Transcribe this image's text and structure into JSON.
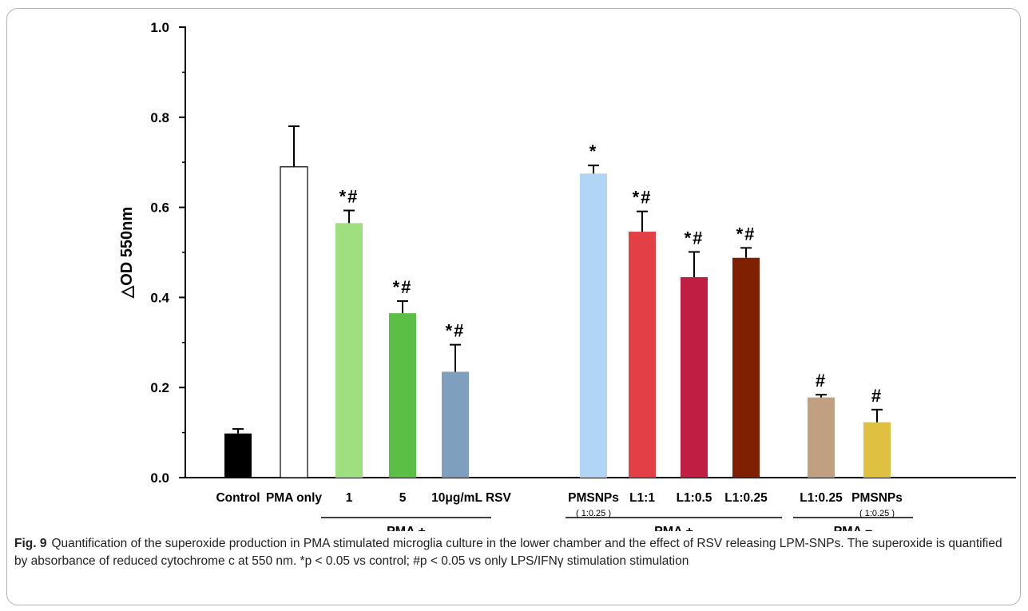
{
  "chart_data": {
    "type": "bar",
    "ylabel": "△OD 550nm",
    "ylim": [
      0,
      1.0
    ],
    "yticks": [
      "0.0",
      "0.2",
      "0.4",
      "0.6",
      "0.8",
      "1.0"
    ],
    "grid": false,
    "bars": [
      {
        "label": "Control",
        "sublabel": "",
        "value": 0.098,
        "error": 0.01,
        "annotation": "",
        "color": "#000000"
      },
      {
        "label": "PMA only",
        "sublabel": "",
        "value": 0.69,
        "error": 0.09,
        "annotation": "",
        "color": "#ffffff"
      },
      {
        "label": "1",
        "sublabel": "",
        "value": 0.565,
        "error": 0.028,
        "annotation": "*#",
        "color": "#9fdf7f"
      },
      {
        "label": "5",
        "sublabel": "",
        "value": 0.365,
        "error": 0.027,
        "annotation": "*#",
        "color": "#5cbf45"
      },
      {
        "label": "10μg/mL RSV",
        "sublabel": "",
        "value": 0.235,
        "error": 0.06,
        "annotation": "*#",
        "color": "#7f9fbf"
      },
      {
        "label": "PMSNPs",
        "sublabel": "( 1:0.25 )",
        "value": 0.675,
        "error": 0.018,
        "annotation": "*",
        "color": "#b0d5f5"
      },
      {
        "label": "L1:1",
        "sublabel": "",
        "value": 0.546,
        "error": 0.045,
        "annotation": "*#",
        "color": "#e24044"
      },
      {
        "label": "L1:0.5",
        "sublabel": "",
        "value": 0.445,
        "error": 0.056,
        "annotation": "*#",
        "color": "#c01f43"
      },
      {
        "label": "L1:0.25",
        "sublabel": "",
        "value": 0.488,
        "error": 0.022,
        "annotation": "*#",
        "color": "#7f2000"
      },
      {
        "label": "L1:0.25",
        "sublabel": "",
        "value": 0.178,
        "error": 0.006,
        "annotation": "#",
        "color": "#c0a080"
      },
      {
        "label": "PMSNPs",
        "sublabel": "( 1:0.25 )",
        "value": 0.123,
        "error": 0.028,
        "annotation": "#",
        "color": "#e0c040"
      }
    ],
    "groups": [
      {
        "label": "PMA +",
        "bars": [
          2,
          3,
          4
        ]
      },
      {
        "label": "PMA +",
        "bars": [
          5,
          6,
          7,
          8
        ]
      },
      {
        "label": "PMA −",
        "bars": [
          9,
          10
        ]
      }
    ]
  },
  "caption": {
    "label": "Fig. 9",
    "text": "Quantification of the superoxide production in PMA stimulated microglia culture in the lower chamber and the effect of RSV releasing LPM-SNPs. The superoxide is quantified by absorbance of reduced cytochrome c at 550 nm. *p < 0.05 vs control; #p < 0.05 vs only LPS/IFNγ stimulation stimulation"
  }
}
